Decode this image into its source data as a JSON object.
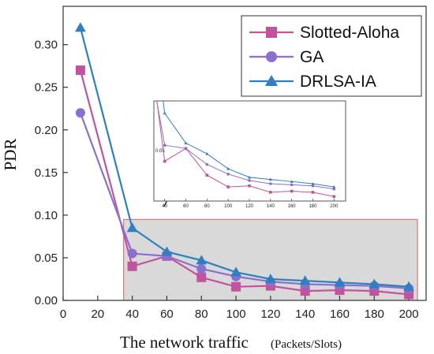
{
  "chart_data": {
    "type": "line",
    "title": "",
    "xlabel": "The network traffic",
    "xlabel_unit": "(Packets/Slots)",
    "ylabel": "PDR",
    "xlim": [
      0,
      210
    ],
    "ylim": [
      0,
      0.345
    ],
    "xticks": [
      0,
      20,
      40,
      60,
      80,
      100,
      120,
      140,
      160,
      180,
      200
    ],
    "yticks": [
      0.0,
      0.05,
      0.1,
      0.15,
      0.2,
      0.25,
      0.3
    ],
    "x": [
      10,
      40,
      60,
      80,
      100,
      120,
      140,
      160,
      180,
      200
    ],
    "series": [
      {
        "name": "Slotted-Aloha",
        "marker": "square",
        "color": "#c2539e",
        "values": [
          0.27,
          0.04,
          0.052,
          0.027,
          0.016,
          0.017,
          0.011,
          0.012,
          0.011,
          0.007
        ]
      },
      {
        "name": "GA",
        "marker": "circle",
        "color": "#8b6fcf",
        "values": [
          0.22,
          0.055,
          0.052,
          0.037,
          0.028,
          0.022,
          0.019,
          0.018,
          0.017,
          0.014
        ]
      },
      {
        "name": "DRLSA-IA",
        "marker": "triangle",
        "color": "#2f7fc1",
        "values": [
          0.32,
          0.085,
          0.057,
          0.047,
          0.033,
          0.025,
          0.023,
          0.021,
          0.019,
          0.016
        ]
      }
    ],
    "legend": "top-right",
    "grid": false,
    "highlight_region": {
      "x": [
        35,
        205
      ],
      "y": [
        0,
        0.095
      ],
      "fill": "#d9d9d9",
      "stroke": "#e06060"
    },
    "inset": {
      "xticks": [
        40,
        60,
        80,
        100,
        120,
        140,
        160,
        180,
        200
      ],
      "ytick_labels": [
        "0.05"
      ],
      "xlim": [
        35,
        205
      ],
      "ylim": [
        0.005,
        0.095
      ]
    }
  }
}
